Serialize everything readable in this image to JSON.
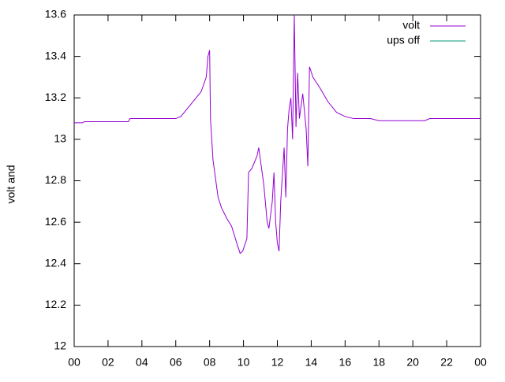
{
  "chart_data": {
    "type": "line",
    "ylabel": "volt and",
    "x": [
      0,
      0.5,
      0.6,
      3.2,
      3.3,
      6.0,
      6.3,
      7.0,
      7.5,
      7.8,
      7.9,
      8.0,
      8.05,
      8.2,
      8.5,
      8.7,
      9.0,
      9.3,
      9.6,
      9.8,
      9.95,
      10.2,
      10.3,
      10.5,
      10.8,
      10.9,
      11.0,
      11.2,
      11.4,
      11.5,
      11.7,
      11.8,
      11.9,
      12.0,
      12.1,
      12.2,
      12.4,
      12.5,
      12.6,
      12.7,
      12.8,
      12.9,
      13.0,
      13.1,
      13.2,
      13.3,
      13.5,
      13.7,
      13.8,
      13.9,
      14.1,
      14.5,
      15.0,
      15.5,
      16.0,
      16.5,
      17.5,
      18.0,
      20.7,
      21.0,
      24.0
    ],
    "series": [
      {
        "name": "volt",
        "color": "#9400d3",
        "values": [
          13.08,
          13.08,
          13.085,
          13.085,
          13.1,
          13.1,
          13.11,
          13.18,
          13.23,
          13.3,
          13.4,
          13.43,
          13.1,
          12.9,
          12.72,
          12.67,
          12.62,
          12.58,
          12.5,
          12.45,
          12.46,
          12.52,
          12.84,
          12.86,
          12.92,
          12.96,
          12.9,
          12.78,
          12.6,
          12.57,
          12.7,
          12.84,
          12.6,
          12.5,
          12.46,
          12.7,
          12.96,
          12.72,
          13.05,
          13.15,
          13.2,
          13.0,
          13.6,
          13.06,
          13.32,
          13.1,
          13.22,
          13.05,
          12.87,
          13.35,
          13.3,
          13.25,
          13.18,
          13.13,
          13.11,
          13.1,
          13.1,
          13.09,
          13.09,
          13.1,
          13.1
        ]
      },
      {
        "name": "ups off",
        "color": "#009e73",
        "values": [
          null,
          null,
          null,
          null,
          null,
          null,
          null,
          null,
          null,
          null,
          null,
          null,
          null,
          null,
          null,
          null,
          null,
          null,
          null,
          null,
          null,
          null,
          null,
          null,
          null,
          null,
          null,
          null,
          null,
          null,
          null,
          null,
          null,
          null,
          null,
          null,
          null,
          null,
          null,
          null,
          null,
          null,
          null,
          null,
          null,
          null,
          null,
          null,
          null,
          null,
          null,
          null,
          null,
          null,
          null,
          null,
          null,
          null,
          null,
          null,
          null
        ]
      }
    ],
    "xlim": [
      0,
      24
    ],
    "xticks": [
      {
        "value": 0,
        "label": "00"
      },
      {
        "value": 2,
        "label": "02"
      },
      {
        "value": 4,
        "label": "04"
      },
      {
        "value": 6,
        "label": "06"
      },
      {
        "value": 8,
        "label": "08"
      },
      10,
      12,
      14,
      16,
      18,
      20,
      22,
      {
        "value": 24,
        "label": "00"
      }
    ],
    "ylim": [
      12,
      13.6
    ],
    "yticks": [
      12,
      12.2,
      12.4,
      12.6,
      12.8,
      13,
      13.2,
      13.4,
      13.6
    ],
    "grid": false,
    "legend": "top-right"
  }
}
